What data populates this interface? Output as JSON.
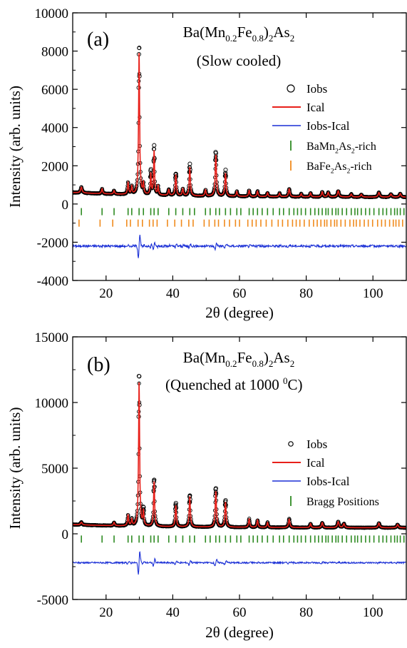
{
  "chart_data": [
    {
      "type": "line",
      "panel_label": "(a)",
      "title_parts": [
        "Ba(Mn",
        "0.2",
        "Fe",
        "0.8",
        ")",
        "2",
        "As",
        "2"
      ],
      "subtitle": "(Slow cooled)",
      "xlabel": "2θ (degree)",
      "ylabel": "Intensity (arb. units)",
      "xlim": [
        10,
        110
      ],
      "ylim": [
        -4000,
        10000
      ],
      "xticks": [
        20,
        40,
        60,
        80,
        100
      ],
      "xtick_labels": [
        "20",
        "40",
        "60",
        "80",
        "100"
      ],
      "yticks": [
        -4000,
        -2000,
        0,
        2000,
        4000,
        6000,
        8000,
        10000
      ],
      "ytick_labels": [
        "-4000",
        "-2000",
        "0",
        "2000",
        "4000",
        "6000",
        "8000",
        "10000"
      ],
      "background": 350,
      "diff_offset": -2200,
      "peaks": [
        [
          12.6,
          300,
          0.4
        ],
        [
          18.8,
          260,
          0.3
        ],
        [
          22.4,
          180,
          0.3
        ],
        [
          26.6,
          600,
          0.3
        ],
        [
          27.7,
          420,
          0.25
        ],
        [
          29.9,
          7450,
          0.28
        ],
        [
          31.2,
          550,
          0.25
        ],
        [
          33.4,
          1100,
          0.25
        ],
        [
          34.4,
          2300,
          0.25
        ],
        [
          35.6,
          450,
          0.25
        ],
        [
          38.8,
          300,
          0.3
        ],
        [
          40.9,
          1080,
          0.3
        ],
        [
          43.0,
          350,
          0.3
        ],
        [
          45.1,
          1480,
          0.3
        ],
        [
          49.8,
          320,
          0.3
        ],
        [
          52.9,
          2150,
          0.32
        ],
        [
          55.8,
          1200,
          0.32
        ],
        [
          59.2,
          250,
          0.3
        ],
        [
          62.9,
          320,
          0.3
        ],
        [
          65.4,
          280,
          0.3
        ],
        [
          68.4,
          200,
          0.3
        ],
        [
          72.0,
          180,
          0.3
        ],
        [
          74.9,
          420,
          0.35
        ],
        [
          78.5,
          160,
          0.3
        ],
        [
          81.3,
          200,
          0.3
        ],
        [
          84.8,
          260,
          0.35
        ],
        [
          86.6,
          230,
          0.35
        ],
        [
          89.6,
          320,
          0.4
        ],
        [
          93.5,
          150,
          0.35
        ],
        [
          96.5,
          140,
          0.35
        ],
        [
          101.8,
          240,
          0.4
        ],
        [
          105.4,
          160,
          0.4
        ],
        [
          108.2,
          180,
          0.4
        ]
      ],
      "series": [
        {
          "name": "Iobs",
          "color": "#000000",
          "marker": "circle"
        },
        {
          "name": "Ical",
          "color": "#e8201a",
          "marker": "line"
        },
        {
          "name": "Iobs-Ical",
          "color": "#1a2fd6",
          "marker": "line"
        }
      ],
      "bragg_sets": [
        {
          "name_parts": [
            "BaMn",
            "2",
            "As",
            "2",
            "-rich"
          ],
          "color": "#2e8b22",
          "y": -400,
          "positions": [
            12.6,
            18.8,
            22.4,
            26.6,
            27.7,
            29.9,
            31.2,
            33.4,
            34.4,
            35.6,
            38.8,
            40.9,
            43.0,
            45.1,
            46.5,
            49.8,
            51.2,
            52.9,
            54.0,
            55.8,
            57.3,
            59.2,
            60.4,
            62.9,
            64.1,
            65.4,
            66.8,
            68.4,
            70.1,
            72.0,
            73.2,
            74.9,
            76.3,
            77.4,
            78.5,
            79.8,
            81.3,
            82.6,
            83.7,
            84.8,
            85.9,
            86.6,
            87.8,
            88.9,
            89.6,
            90.8,
            92.1,
            93.5,
            94.6,
            95.4,
            96.5,
            97.8,
            99.0,
            100.3,
            101.8,
            103.0,
            104.1,
            105.4,
            106.5,
            107.3,
            108.2,
            109.3
          ]
        },
        {
          "name_parts": [
            "BaFe",
            "2",
            "As",
            "2",
            "-rich"
          ],
          "color": "#f08a1c",
          "y": -1000,
          "positions": [
            11.9,
            18.2,
            22.0,
            26.2,
            27.3,
            29.6,
            30.9,
            33.0,
            34.1,
            35.3,
            38.4,
            40.6,
            42.6,
            44.8,
            46.1,
            49.4,
            50.9,
            52.6,
            53.7,
            55.5,
            57.0,
            58.8,
            60.0,
            62.5,
            63.8,
            65.0,
            66.4,
            68.0,
            69.7,
            71.6,
            72.9,
            74.5,
            75.9,
            77.0,
            78.1,
            79.4,
            80.9,
            82.2,
            83.3,
            84.4,
            85.5,
            86.2,
            87.4,
            88.5,
            89.2,
            90.4,
            91.7,
            93.1,
            94.2,
            95.0,
            96.1,
            97.4,
            98.6,
            99.9,
            101.4,
            102.6,
            103.7,
            105.0,
            106.1,
            106.9,
            107.8,
            108.9
          ]
        }
      ],
      "legend": "right"
    },
    {
      "type": "line",
      "panel_label": "(b)",
      "title_parts": [
        "Ba(Mn",
        "0.2",
        "Fe",
        "0.8",
        ")",
        "2",
        "As",
        "2"
      ],
      "subtitle_parts": [
        "(Quenched at 1000 ",
        "0",
        "C)"
      ],
      "xlabel": "2θ (degree)",
      "ylabel": "Intensity (arb. units)",
      "xlim": [
        10,
        110
      ],
      "ylim": [
        -5000,
        15000
      ],
      "xticks": [
        20,
        40,
        60,
        80,
        100
      ],
      "xtick_labels": [
        "20",
        "40",
        "60",
        "80",
        "100"
      ],
      "yticks": [
        -5000,
        0,
        5000,
        10000,
        15000
      ],
      "ytick_labels": [
        "-5000",
        "0",
        "5000",
        "10000",
        "15000"
      ],
      "background": 450,
      "diff_offset": -2200,
      "peaks": [
        [
          12.6,
          200,
          0.4
        ],
        [
          22.4,
          250,
          0.3
        ],
        [
          26.6,
          800,
          0.3
        ],
        [
          27.7,
          500,
          0.25
        ],
        [
          29.9,
          11000,
          0.28
        ],
        [
          31.2,
          1100,
          0.25
        ],
        [
          34.4,
          3400,
          0.28
        ],
        [
          40.9,
          1600,
          0.3
        ],
        [
          45.1,
          2300,
          0.3
        ],
        [
          52.9,
          2700,
          0.32
        ],
        [
          55.8,
          1900,
          0.32
        ],
        [
          62.9,
          650,
          0.3
        ],
        [
          65.4,
          550,
          0.3
        ],
        [
          68.4,
          380,
          0.3
        ],
        [
          74.9,
          650,
          0.35
        ],
        [
          81.3,
          300,
          0.3
        ],
        [
          84.8,
          380,
          0.35
        ],
        [
          89.6,
          450,
          0.4
        ],
        [
          91.3,
          300,
          0.4
        ],
        [
          101.8,
          350,
          0.4
        ],
        [
          107.4,
          250,
          0.4
        ]
      ],
      "series": [
        {
          "name": "Iobs",
          "color": "#000000",
          "marker": "circle"
        },
        {
          "name": "Ical",
          "color": "#e8201a",
          "marker": "line"
        },
        {
          "name": "Iobs-Ical",
          "color": "#1a2fd6",
          "marker": "line"
        }
      ],
      "bragg_sets": [
        {
          "name_parts": [
            "Bragg Positions"
          ],
          "color": "#2e8b22",
          "y": -400,
          "positions": [
            12.6,
            18.8,
            22.4,
            26.6,
            27.7,
            29.9,
            31.2,
            33.4,
            34.4,
            35.6,
            38.8,
            40.9,
            43.0,
            45.1,
            46.5,
            49.8,
            51.2,
            52.9,
            54.0,
            55.8,
            57.3,
            59.2,
            60.4,
            62.9,
            64.1,
            65.4,
            66.8,
            68.4,
            70.1,
            72.0,
            73.2,
            74.9,
            76.3,
            77.4,
            78.5,
            79.8,
            81.3,
            82.6,
            83.7,
            84.8,
            85.9,
            86.6,
            87.8,
            88.9,
            89.6,
            90.8,
            92.1,
            93.5,
            94.6,
            95.4,
            96.5,
            97.8,
            99.0,
            100.3,
            101.8,
            103.0,
            104.1,
            105.4,
            106.5,
            107.3,
            108.2,
            109.3
          ]
        }
      ],
      "legend": "right"
    }
  ]
}
